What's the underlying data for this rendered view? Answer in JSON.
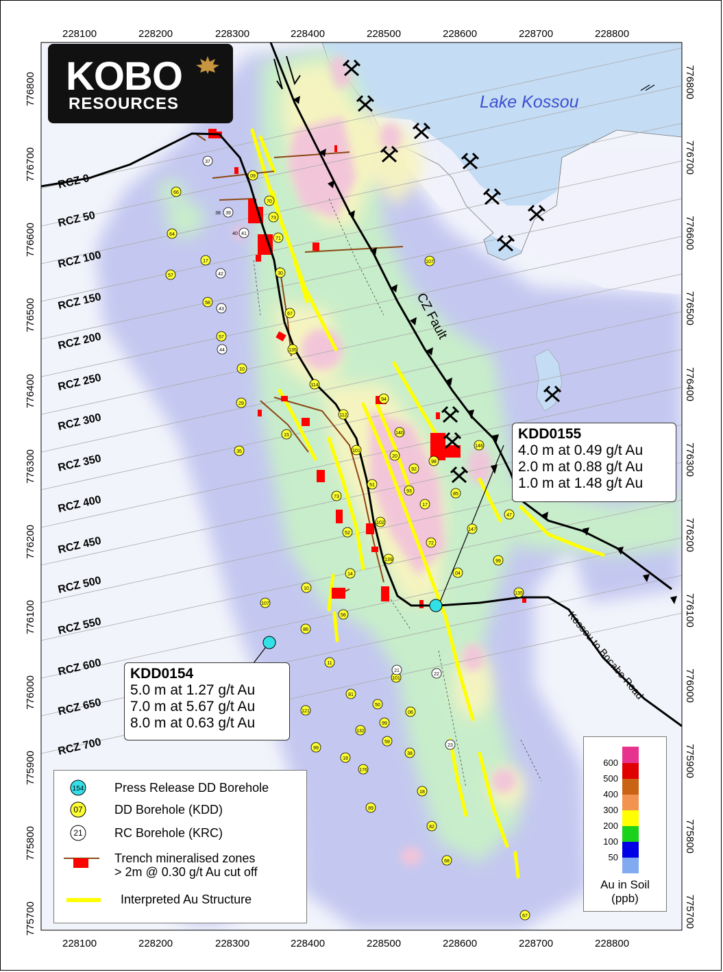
{
  "logo": {
    "line1": "KOBO",
    "line2": "RESOURCES"
  },
  "lake_label": "Lake Kossou",
  "fault_label": "CZ Fault",
  "road_label": "Kossou to Bocabo Road",
  "eastings": [
    "228100",
    "228200",
    "228300",
    "228400",
    "228500",
    "228600",
    "228700",
    "228800"
  ],
  "northings": [
    "776800",
    "776700",
    "776600",
    "776500",
    "776400",
    "776300",
    "776200",
    "776100",
    "776000",
    "775900",
    "775800",
    "775700"
  ],
  "rcz_labels": [
    "RCZ 0",
    "RCZ 50",
    "RCZ 100",
    "RCZ 150",
    "RCZ 200",
    "RCZ 250",
    "RCZ 300",
    "RCZ 350",
    "RCZ 400",
    "RCZ 450",
    "RCZ 500",
    "RCZ 550",
    "RCZ 600",
    "RCZ 650",
    "RCZ 700"
  ],
  "callout_kdd0155": {
    "title": "KDD0155",
    "lines": [
      "4.0 m at 0.49 g/t Au",
      "2.0 m at 0.88 g/t Au",
      "1.0 m at 1.48 g/t Au"
    ]
  },
  "callout_kdd0154": {
    "title": "KDD0154",
    "lines": [
      "5.0 m at 1.27 g/t Au",
      "7.0 m at 5.67 g/t Au",
      "8.0 m at 0.63 g/t Au"
    ]
  },
  "legend": {
    "press_release_sym": "154",
    "press_release_label": "Press Release DD Borehole",
    "dd_sym": "07",
    "dd_label": "DD Borehole (KDD)",
    "rc_sym": "21",
    "rc_label": "RC Borehole (KRC)",
    "trench_label_1": "Trench mineralised zones",
    "trench_label_2": "> 2m @ 0.30 g/t Au cut off",
    "structure_label": "Interpreted Au Structure"
  },
  "colorbar": {
    "title_1": "Au in Soil",
    "title_2": "(ppb)",
    "labels": [
      "600",
      "500",
      "400",
      "300",
      "200",
      "100",
      "50"
    ],
    "colors": {
      "c600": "#e8338e",
      "c500": "#e00000",
      "c400": "#c86414",
      "c300": "#f39350",
      "c200": "#ffff00",
      "c100": "#19d219",
      "c50": "#0000e6",
      "c0": "#82aaf0"
    }
  },
  "colors": {
    "soil_bg": "#c4c8f0",
    "lake": "#c4dcf4",
    "dd_fill": "#ffff33",
    "pr_fill": "#33e0e8",
    "trench": "#ff0000",
    "structure": "#ffff00"
  },
  "holes": {
    "dd": [
      "09",
      "70",
      "73",
      "71",
      "66",
      "64",
      "17",
      "57",
      "58",
      "30",
      "67",
      "57",
      "10",
      "29",
      "15",
      "35",
      "114",
      "135",
      "112",
      "101",
      "51",
      "73",
      "52",
      "102",
      "139",
      "14",
      "56",
      "86",
      "10",
      "107",
      "94",
      "140",
      "20",
      "93",
      "92",
      "17",
      "72",
      "98",
      "85",
      "146",
      "47",
      "147",
      "04",
      "99",
      "135",
      "107",
      "101",
      "06",
      "11",
      "81",
      "121",
      "132",
      "50",
      "99",
      "99",
      "18",
      "176",
      "59",
      "38",
      "18",
      "89",
      "82",
      "68",
      "67"
    ],
    "rc": [
      "37",
      "38",
      "39",
      "40",
      "41",
      "42",
      "43",
      "44",
      "22",
      "21",
      "23"
    ]
  }
}
